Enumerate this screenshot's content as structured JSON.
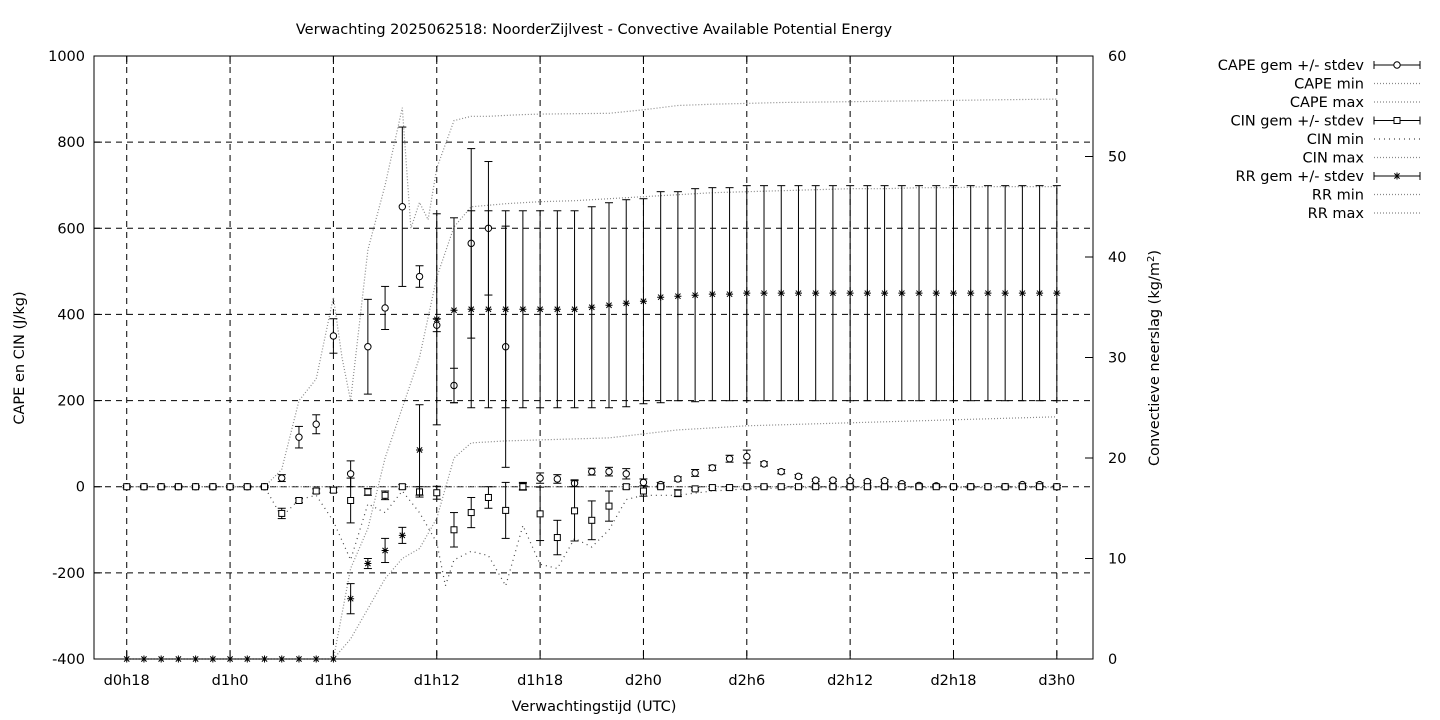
{
  "chart_data": {
    "type": "line",
    "title": "Verwachting 2025062518: NoorderZijlvest - Convective Available Potential Energy",
    "xlabel": "Verwachtingstijd (UTC)",
    "ylabel": "CAPE en CIN (J/kg)",
    "y2label": "Convectieve neerslag (kg/m",
    "y2label_sup": "2",
    "y2label_tail": ")",
    "x_unit": "forecast hour",
    "x_ticks": [
      {
        "x": 0,
        "label": "d0h18"
      },
      {
        "x": 6,
        "label": "d1h0"
      },
      {
        "x": 12,
        "label": "d1h6"
      },
      {
        "x": 18,
        "label": "d1h12"
      },
      {
        "x": 24,
        "label": "d1h18"
      },
      {
        "x": 30,
        "label": "d2h0"
      },
      {
        "x": 36,
        "label": "d2h6"
      },
      {
        "x": 42,
        "label": "d2h12"
      },
      {
        "x": 48,
        "label": "d2h18"
      },
      {
        "x": 54,
        "label": "d3h0"
      }
    ],
    "xlim": [
      -1.9,
      56.1
    ],
    "ylim": [
      -400,
      1000
    ],
    "y_ticks": [
      -400,
      -200,
      0,
      200,
      400,
      600,
      800,
      1000
    ],
    "y2lim": [
      0,
      60
    ],
    "y2_ticks": [
      0,
      10,
      20,
      30,
      40,
      50,
      60
    ],
    "grid": true,
    "legend_position": "outside-right",
    "legend": [
      {
        "label": "CAPE gem +/- stdev",
        "style": "errorbar",
        "marker": "circle"
      },
      {
        "label": "CAPE min",
        "style": "dotted"
      },
      {
        "label": "CAPE max",
        "style": "dotted"
      },
      {
        "label": "CIN gem +/- stdev",
        "style": "errorbar",
        "marker": "square"
      },
      {
        "label": "CIN min",
        "style": "dotted-sparse"
      },
      {
        "label": "CIN max",
        "style": "dotted"
      },
      {
        "label": "RR gem +/- stdev",
        "style": "errorbar",
        "marker": "star"
      },
      {
        "label": "RR min",
        "style": "dotted"
      },
      {
        "label": "RR max",
        "style": "dotted"
      }
    ],
    "series": [
      {
        "name": "CAPE gem +/- stdev",
        "axis": "y1",
        "marker": "circle",
        "x": [
          0,
          1,
          2,
          3,
          4,
          5,
          6,
          7,
          8,
          9,
          10,
          11,
          12,
          13,
          14,
          15,
          16,
          17,
          18,
          19,
          20,
          21,
          22,
          23,
          24,
          25,
          26,
          27,
          28,
          29,
          30,
          31,
          32,
          33,
          34,
          35,
          36,
          37,
          38,
          39,
          40,
          41,
          42,
          43,
          44,
          45,
          46,
          47,
          48,
          49,
          50,
          51,
          52,
          53,
          54
        ],
        "mean": [
          0,
          0,
          0,
          0,
          0,
          0,
          0,
          0,
          0,
          20,
          115,
          145,
          350,
          30,
          325,
          415,
          650,
          488,
          375,
          235,
          565,
          600,
          325,
          2,
          20,
          18,
          8,
          35,
          35,
          30,
          10,
          5,
          18,
          32,
          44,
          65,
          70,
          53,
          35,
          24,
          15,
          15,
          14,
          12,
          14,
          7,
          3,
          2,
          0,
          0,
          0,
          0,
          5,
          5,
          0
        ],
        "sd": [
          2,
          2,
          2,
          2,
          2,
          2,
          2,
          2,
          2,
          8,
          25,
          22,
          40,
          30,
          110,
          50,
          185,
          25,
          15,
          40,
          220,
          155,
          280,
          8,
          12,
          10,
          8,
          8,
          10,
          12,
          8,
          5,
          5,
          8,
          6,
          8,
          15,
          5,
          5,
          4,
          3,
          3,
          3,
          3,
          3,
          3,
          3,
          3,
          3,
          3,
          3,
          3,
          3,
          4,
          3
        ]
      },
      {
        "name": "CAPE min",
        "axis": "y1",
        "x": [
          0,
          3,
          6,
          8,
          9,
          10,
          11,
          12,
          13,
          14,
          15,
          16,
          17,
          18,
          19,
          20,
          21,
          22,
          23,
          24,
          26,
          28,
          30,
          32,
          34,
          36,
          38,
          40,
          42,
          44,
          46,
          48,
          50,
          52,
          54
        ],
        "val": [
          0,
          0,
          0,
          0,
          0,
          0,
          0,
          0,
          0,
          0,
          0,
          0,
          0,
          0,
          0,
          0,
          0,
          0,
          0,
          0,
          0,
          0,
          0,
          0,
          0,
          0,
          0,
          0,
          0,
          0,
          0,
          0,
          0,
          0,
          0
        ]
      },
      {
        "name": "CAPE max",
        "axis": "y1",
        "x": [
          0,
          6,
          8,
          9,
          10,
          11,
          12,
          12.5,
          13,
          14,
          15,
          16,
          16.5,
          17,
          17.5,
          18,
          19,
          20,
          21,
          22,
          23,
          24,
          26,
          28,
          30,
          32,
          34,
          36,
          38,
          40,
          42,
          44,
          46,
          48,
          50,
          52,
          54
        ],
        "val": [
          0,
          0,
          0,
          40,
          200,
          250,
          440,
          300,
          200,
          550,
          700,
          880,
          600,
          660,
          620,
          740,
          850,
          860,
          860,
          862,
          864,
          865,
          866,
          867,
          875,
          885,
          888,
          890,
          892,
          893,
          894,
          895,
          896,
          897,
          898,
          899,
          900
        ]
      },
      {
        "name": "CIN gem +/- stdev",
        "axis": "y1",
        "marker": "square",
        "x": [
          0,
          1,
          2,
          3,
          4,
          5,
          6,
          7,
          8,
          9,
          10,
          11,
          12,
          13,
          14,
          15,
          16,
          17,
          18,
          19,
          20,
          21,
          22,
          23,
          24,
          25,
          26,
          27,
          28,
          29,
          30,
          31,
          32,
          33,
          34,
          35,
          36,
          37,
          38,
          39,
          40,
          41,
          42,
          43,
          44,
          45,
          46,
          47,
          48,
          49,
          50,
          51,
          52,
          53,
          54
        ],
        "mean": [
          0,
          0,
          0,
          0,
          0,
          0,
          0,
          0,
          0,
          -62,
          -32,
          -10,
          -8,
          -32,
          -12,
          -20,
          0,
          -12,
          -14,
          -100,
          -60,
          -25,
          -55,
          0,
          -63,
          -118,
          -56,
          -78,
          -45,
          0,
          -10,
          0,
          -15,
          -5,
          -2,
          -2,
          0,
          0,
          0,
          0,
          0,
          0,
          0,
          0,
          0,
          0,
          0,
          0,
          0,
          0,
          0,
          0,
          0,
          0,
          0
        ],
        "sd": [
          3,
          3,
          3,
          3,
          3,
          3,
          3,
          3,
          3,
          12,
          5,
          5,
          5,
          52,
          8,
          10,
          5,
          12,
          15,
          40,
          35,
          25,
          65,
          8,
          62,
          40,
          70,
          45,
          35,
          5,
          12,
          3,
          8,
          3,
          3,
          3,
          3,
          3,
          3,
          3,
          3,
          3,
          3,
          3,
          3,
          3,
          3,
          3,
          3,
          3,
          3,
          3,
          3,
          3,
          3
        ]
      },
      {
        "name": "CIN min",
        "axis": "y1",
        "x": [
          0,
          8,
          9,
          10,
          11,
          12,
          13,
          14,
          15,
          16,
          17,
          18,
          18.5,
          19,
          20,
          21,
          22,
          23,
          24,
          25,
          26,
          27,
          28,
          29,
          30,
          32,
          34,
          36,
          38,
          40,
          42,
          44,
          46,
          48,
          50,
          52,
          54
        ],
        "val": [
          0,
          0,
          -70,
          -30,
          -20,
          -80,
          -170,
          -40,
          -60,
          -10,
          -60,
          -130,
          -230,
          -170,
          -150,
          -160,
          -230,
          -90,
          -180,
          -190,
          -120,
          -140,
          -100,
          -30,
          -20,
          -20,
          -10,
          -5,
          -3,
          -2,
          -2,
          -2,
          -2,
          -2,
          -2,
          -2,
          -2
        ]
      },
      {
        "name": "CIN max",
        "axis": "y1",
        "x": [
          0,
          8,
          9,
          10,
          11,
          12,
          14,
          16,
          18,
          20,
          22,
          24,
          26,
          28,
          30,
          32,
          34,
          36,
          38,
          40,
          42,
          44,
          46,
          48,
          50,
          52,
          54
        ],
        "val": [
          0,
          0,
          0,
          0,
          0,
          0,
          0,
          0,
          0,
          0,
          0,
          0,
          0,
          0,
          0,
          0,
          0,
          0,
          0,
          0,
          0,
          0,
          0,
          0,
          0,
          0,
          0
        ]
      },
      {
        "name": "RR gem +/- stdev",
        "axis": "y2",
        "marker": "star",
        "x": [
          0,
          1,
          2,
          3,
          4,
          5,
          6,
          7,
          8,
          9,
          10,
          11,
          12,
          13,
          14,
          15,
          16,
          17,
          18,
          19,
          20,
          21,
          22,
          23,
          24,
          25,
          26,
          27,
          28,
          29,
          30,
          31,
          32,
          33,
          34,
          35,
          36,
          37,
          38,
          39,
          40,
          41,
          42,
          43,
          44,
          45,
          46,
          47,
          48,
          49,
          50,
          51,
          52,
          53,
          54
        ],
        "mean": [
          0,
          0,
          0,
          0,
          0,
          0,
          0,
          0,
          0,
          0,
          0,
          0,
          0,
          6,
          9.5,
          10.8,
          12.3,
          20.8,
          33.8,
          34.7,
          34.8,
          34.8,
          34.8,
          34.8,
          34.8,
          34.8,
          34.8,
          35,
          35.2,
          35.4,
          35.6,
          36,
          36.1,
          36.2,
          36.3,
          36.3,
          36.4,
          36.4,
          36.4,
          36.4,
          36.4,
          36.4,
          36.4,
          36.4,
          36.4,
          36.4,
          36.4,
          36.4,
          36.4,
          36.4,
          36.4,
          36.4,
          36.4,
          36.4,
          36.4
        ],
        "sd": [
          0,
          0,
          0,
          0,
          0,
          0,
          0,
          0,
          0,
          0,
          0,
          0,
          0,
          1.5,
          0.5,
          1.2,
          0.8,
          4.5,
          10.5,
          9.2,
          9.8,
          9.8,
          9.8,
          9.8,
          9.8,
          9.8,
          9.8,
          10,
          10.2,
          10.3,
          10.2,
          10.5,
          10.4,
          10.6,
          10.6,
          10.6,
          10.7,
          10.7,
          10.7,
          10.7,
          10.7,
          10.7,
          10.7,
          10.7,
          10.7,
          10.7,
          10.7,
          10.7,
          10.7,
          10.7,
          10.7,
          10.7,
          10.7,
          10.7,
          10.7
        ]
      },
      {
        "name": "RR min",
        "axis": "y2",
        "x": [
          0,
          12,
          13,
          14,
          15,
          16,
          17,
          18,
          19,
          20,
          22,
          24,
          26,
          28,
          30,
          32,
          34,
          36,
          38,
          40,
          42,
          44,
          46,
          48,
          50,
          52,
          54
        ],
        "val": [
          0,
          0,
          2,
          5,
          8,
          10,
          11,
          14,
          20,
          21.5,
          21.7,
          21.8,
          21.9,
          22,
          22.4,
          22.8,
          23,
          23.2,
          23.3,
          23.4,
          23.5,
          23.6,
          23.7,
          23.8,
          23.9,
          24,
          24.1
        ]
      },
      {
        "name": "RR max",
        "axis": "y2",
        "x": [
          0,
          12,
          13,
          14,
          15,
          16,
          17,
          18,
          19,
          20,
          22,
          24,
          26,
          28,
          30,
          32,
          34,
          36,
          38,
          40,
          42,
          44,
          46,
          48,
          50,
          52,
          54
        ],
        "val": [
          0,
          0,
          9,
          13,
          20,
          25,
          30,
          38,
          43,
          45,
          45.3,
          45.5,
          45.6,
          45.8,
          46,
          46.2,
          46.4,
          46.5,
          46.6,
          46.7,
          46.8,
          46.8,
          46.9,
          46.9,
          47,
          47,
          47
        ]
      }
    ]
  }
}
